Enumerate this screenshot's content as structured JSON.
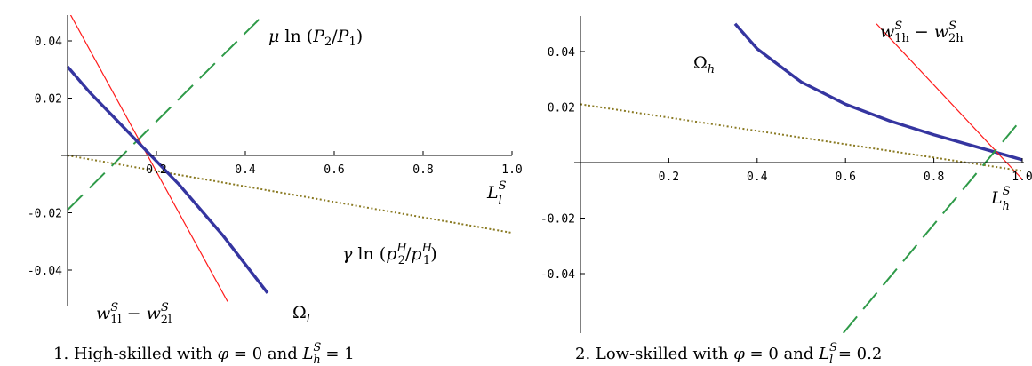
{
  "chart_data": [
    {
      "type": "line",
      "xlim": [
        0,
        1.0
      ],
      "ylim": [
        -0.05,
        0.05
      ],
      "x_ticks": [
        0.2,
        0.4,
        0.6,
        0.8,
        1.0
      ],
      "x_tick_labels": [
        "0.2",
        "0.4",
        "0.6",
        "0.8",
        "1.0"
      ],
      "y_ticks": [
        0.04,
        0.02,
        -0.02,
        -0.04
      ],
      "y_tick_labels": [
        "0.04",
        "0.02",
        "-0.02",
        "-0.04"
      ],
      "xlabel": {
        "base": "L",
        "sup": "S",
        "sub": "l"
      },
      "caption": {
        "prefix": "1.  High-skilled with ",
        "phi": "φ",
        "mid": " = 0 and ",
        "L": "L",
        "sup": "S",
        "sub": "h",
        "suffix": " = 1"
      },
      "series": [
        {
          "name": "μ ln (P2/P1)",
          "style": "dashed",
          "color": "#2e9a48",
          "x": [
            0,
            0.46
          ],
          "y": [
            -0.019,
            0.052
          ]
        },
        {
          "name": "γ ln (p2H/p1H)",
          "style": "dotted",
          "color": "#8a7a22",
          "x": [
            0,
            1.0
          ],
          "y": [
            0,
            -0.027
          ]
        },
        {
          "name": "w1lS − w2lS",
          "style": "solid",
          "color": "#ff1a1a",
          "x": [
            0,
            0.36
          ],
          "y": [
            0.051,
            -0.051
          ]
        },
        {
          "name": "Ωl",
          "style": "thick",
          "color": "#3535a0",
          "x": [
            0,
            0.05,
            0.1,
            0.15,
            0.2,
            0.25,
            0.3,
            0.35,
            0.4,
            0.45
          ],
          "y": [
            0.031,
            0.022,
            0.014,
            0.006,
            -0.002,
            -0.01,
            -0.019,
            -0.028,
            -0.038,
            -0.048
          ]
        }
      ],
      "annotations": [
        {
          "series": "μ ln (P2/P1)",
          "parts": [
            "μ",
            " ln ",
            "(",
            "P",
            "2",
            "/",
            "P",
            "1",
            ")"
          ]
        },
        {
          "series": "γ ln (p2H/p1H)",
          "parts": [
            "γ",
            " ln ",
            "(",
            "p",
            "H",
            "2",
            "/",
            "p",
            "H",
            "1",
            ")"
          ]
        },
        {
          "series": "w1lS − w2lS",
          "parts": [
            "w",
            "S",
            "1l",
            " − ",
            "w",
            "S",
            "2l"
          ]
        },
        {
          "series": "Ωl",
          "parts": [
            "Ω",
            "l"
          ]
        }
      ]
    },
    {
      "type": "line",
      "xlim": [
        0,
        1.0
      ],
      "ylim": [
        -0.05,
        0.05
      ],
      "x_ticks": [
        0.2,
        0.4,
        0.6,
        0.8,
        1.0
      ],
      "x_tick_labels": [
        "0.2",
        "0.4",
        "0.6",
        "0.8",
        "1.0"
      ],
      "y_ticks": [
        0.04,
        0.02,
        -0.02,
        -0.04
      ],
      "y_tick_labels": [
        "0.04",
        "0.02",
        "-0.02",
        "-0.04"
      ],
      "xlabel": {
        "base": "L",
        "sup": "S",
        "sub": "h"
      },
      "caption": {
        "prefix": "2.  Low-skilled with ",
        "phi": "φ",
        "mid": " = 0 and ",
        "L": "L",
        "sup": "S",
        "sub": "l",
        "suffix": " = 0.2"
      },
      "series": [
        {
          "name": "Ωh",
          "style": "thick",
          "color": "#3535a0",
          "x": [
            0.35,
            0.4,
            0.5,
            0.6,
            0.7,
            0.8,
            0.9,
            1.0
          ],
          "y": [
            0.05,
            0.041,
            0.029,
            0.021,
            0.015,
            0.01,
            0.0055,
            0.001
          ]
        },
        {
          "name": "w1hS − w2hS",
          "style": "solid",
          "color": "#ff1a1a",
          "x": [
            0.67,
            1.0
          ],
          "y": [
            0.05,
            -0.006
          ]
        },
        {
          "name": "dotted",
          "style": "dotted",
          "color": "#8a7a22",
          "x": [
            0,
            1.0
          ],
          "y": [
            0.021,
            -0.003
          ]
        },
        {
          "name": "dashed",
          "style": "dashed",
          "color": "#2e9a48",
          "x": [
            0.55,
            0.99
          ],
          "y": [
            -0.07,
            0.014
          ]
        }
      ],
      "annotations": [
        {
          "series": "Ωh",
          "parts": [
            "Ω",
            "h"
          ]
        },
        {
          "series": "w1hS − w2hS",
          "parts": [
            "w",
            "S",
            "1h",
            " − ",
            "w",
            "S",
            "2h"
          ]
        }
      ]
    }
  ]
}
